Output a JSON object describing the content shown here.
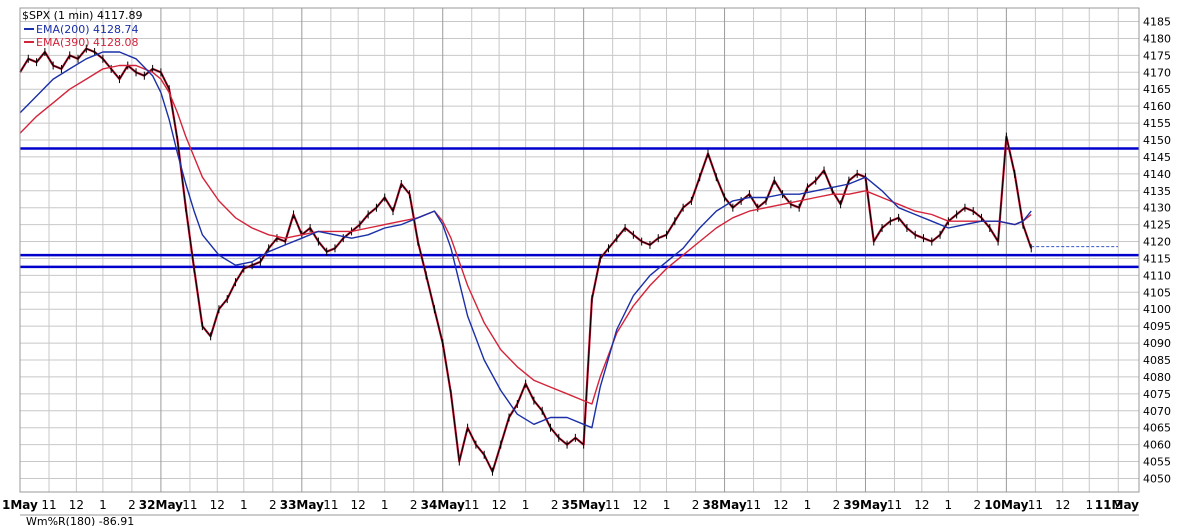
{
  "legend": {
    "title": "$SPX (1 min) 4117.89",
    "ema200": "EMA(200) 4128.74",
    "ema390": "EMA(390) 4128.08"
  },
  "sub_panel_label": "Wm%R(180) -86.91",
  "colors": {
    "price": "#000000",
    "price_overlay": "#cc1133",
    "ema200": "#1a2fa8",
    "ema390": "#d4243a",
    "hline": "#0000cc",
    "grid": "#c8c8c8",
    "last_price_dash": "#3355cc"
  },
  "chart_data": {
    "type": "line",
    "title": "$SPX (1 min) 4117.89",
    "ylim": [
      4046,
      4189
    ],
    "yticks": [
      4050,
      4055,
      4060,
      4065,
      4070,
      4075,
      4080,
      4085,
      4090,
      4095,
      4100,
      4105,
      4110,
      4115,
      4120,
      4125,
      4130,
      4135,
      4140,
      4145,
      4150,
      4155,
      4160,
      4165,
      4170,
      4175,
      4180,
      4185
    ],
    "x_range": [
      0,
      13.5
    ],
    "x_tick_labels": [
      {
        "x": 0.0,
        "text": "1May",
        "bold": true
      },
      {
        "x": 0.35,
        "text": "11",
        "bold": false
      },
      {
        "x": 0.68,
        "text": "12",
        "bold": false
      },
      {
        "x": 1.0,
        "text": "1",
        "bold": false
      },
      {
        "x": 1.35,
        "text": "2",
        "bold": false
      },
      {
        "x": 1.7,
        "text": "32May",
        "bold": true
      },
      {
        "x": 2.05,
        "text": "11",
        "bold": false
      },
      {
        "x": 2.38,
        "text": "12",
        "bold": false
      },
      {
        "x": 2.7,
        "text": "1",
        "bold": false
      },
      {
        "x": 3.05,
        "text": "2",
        "bold": false
      },
      {
        "x": 3.4,
        "text": "33May",
        "bold": true
      },
      {
        "x": 3.75,
        "text": "11",
        "bold": false
      },
      {
        "x": 4.08,
        "text": "12",
        "bold": false
      },
      {
        "x": 4.4,
        "text": "1",
        "bold": false
      },
      {
        "x": 4.75,
        "text": "2",
        "bold": false
      },
      {
        "x": 5.1,
        "text": "34May",
        "bold": true
      },
      {
        "x": 5.45,
        "text": "11",
        "bold": false
      },
      {
        "x": 5.78,
        "text": "12",
        "bold": false
      },
      {
        "x": 6.1,
        "text": "1",
        "bold": false
      },
      {
        "x": 6.45,
        "text": "2",
        "bold": false
      },
      {
        "x": 6.8,
        "text": "35May",
        "bold": true
      },
      {
        "x": 7.15,
        "text": "11",
        "bold": false
      },
      {
        "x": 7.48,
        "text": "12",
        "bold": false
      },
      {
        "x": 7.8,
        "text": "1",
        "bold": false
      },
      {
        "x": 8.15,
        "text": "2",
        "bold": false
      },
      {
        "x": 8.5,
        "text": "38May",
        "bold": true
      },
      {
        "x": 8.85,
        "text": "11",
        "bold": false
      },
      {
        "x": 9.18,
        "text": "12",
        "bold": false
      },
      {
        "x": 9.5,
        "text": "1",
        "bold": false
      },
      {
        "x": 9.85,
        "text": "2",
        "bold": false
      },
      {
        "x": 10.2,
        "text": "39May",
        "bold": true
      },
      {
        "x": 10.55,
        "text": "11",
        "bold": false
      },
      {
        "x": 10.88,
        "text": "12",
        "bold": false
      },
      {
        "x": 11.2,
        "text": "1",
        "bold": false
      },
      {
        "x": 11.55,
        "text": "2",
        "bold": false
      },
      {
        "x": 11.9,
        "text": "10May",
        "bold": true
      },
      {
        "x": 12.25,
        "text": "11",
        "bold": false
      },
      {
        "x": 12.58,
        "text": "12",
        "bold": false
      },
      {
        "x": 12.9,
        "text": "1",
        "bold": false
      },
      {
        "x": 13.25,
        "text": "2",
        "bold": false
      },
      {
        "x": 13.5,
        "text": "11May",
        "bold": true
      }
    ],
    "series": [
      {
        "name": "$SPX (1 min)",
        "x": [
          0.0,
          0.1,
          0.2,
          0.3,
          0.4,
          0.5,
          0.6,
          0.7,
          0.8,
          0.9,
          1.0,
          1.1,
          1.2,
          1.3,
          1.4,
          1.5,
          1.6,
          1.7,
          1.8,
          1.9,
          2.0,
          2.1,
          2.2,
          2.3,
          2.4,
          2.5,
          2.6,
          2.7,
          2.8,
          2.9,
          3.0,
          3.1,
          3.2,
          3.3,
          3.4,
          3.5,
          3.6,
          3.7,
          3.8,
          3.9,
          4.0,
          4.1,
          4.2,
          4.3,
          4.4,
          4.5,
          4.6,
          4.7,
          4.8,
          4.9,
          5.0,
          5.1,
          5.2,
          5.3,
          5.4,
          5.5,
          5.6,
          5.7,
          5.8,
          5.9,
          6.0,
          6.1,
          6.2,
          6.3,
          6.4,
          6.5,
          6.6,
          6.7,
          6.8,
          6.9,
          7.0,
          7.1,
          7.2,
          7.3,
          7.4,
          7.5,
          7.6,
          7.7,
          7.8,
          7.9,
          8.0,
          8.1,
          8.2,
          8.3,
          8.4,
          8.5,
          8.6,
          8.7,
          8.8,
          8.9,
          9.0,
          9.1,
          9.2,
          9.3,
          9.4,
          9.5,
          9.6,
          9.7,
          9.8,
          9.9,
          10.0,
          10.1,
          10.2,
          10.3,
          10.4,
          10.5,
          10.6,
          10.7,
          10.8,
          10.9,
          11.0,
          11.1,
          11.2,
          11.3,
          11.4,
          11.5,
          11.6,
          11.7,
          11.8,
          11.9,
          12.0,
          12.1,
          12.2
        ],
        "y": [
          4170,
          4174,
          4173,
          4176,
          4172,
          4171,
          4175,
          4174,
          4177,
          4176,
          4174,
          4171,
          4168,
          4172,
          4170,
          4169,
          4171,
          4170,
          4165,
          4150,
          4130,
          4112,
          4095,
          4092,
          4100,
          4103,
          4108,
          4112,
          4113,
          4114,
          4118,
          4121,
          4120,
          4128,
          4122,
          4124,
          4120,
          4117,
          4118,
          4121,
          4123,
          4125,
          4128,
          4130,
          4133,
          4129,
          4137,
          4134,
          4120,
          4110,
          4100,
          4090,
          4075,
          4055,
          4065,
          4060,
          4057,
          4052,
          4060,
          4068,
          4072,
          4078,
          4073,
          4070,
          4065,
          4062,
          4060,
          4062,
          4060,
          4103,
          4115,
          4118,
          4121,
          4124,
          4122,
          4120,
          4119,
          4121,
          4122,
          4126,
          4130,
          4132,
          4139,
          4146,
          4139,
          4133,
          4130,
          4132,
          4134,
          4130,
          4132,
          4138,
          4134,
          4131,
          4130,
          4136,
          4138,
          4141,
          4135,
          4131,
          4138,
          4140,
          4139,
          4120,
          4124,
          4126,
          4127,
          4124,
          4122,
          4121,
          4120,
          4122,
          4126,
          4128,
          4130,
          4129,
          4127,
          4124,
          4120,
          4151,
          4140,
          4125,
          4118
        ]
      },
      {
        "name": "EMA(200) 4128.74",
        "x": [
          0.0,
          0.2,
          0.4,
          0.6,
          0.8,
          1.0,
          1.2,
          1.4,
          1.6,
          1.7,
          1.8,
          1.9,
          2.0,
          2.1,
          2.2,
          2.4,
          2.6,
          2.8,
          3.0,
          3.2,
          3.4,
          3.6,
          3.8,
          4.0,
          4.2,
          4.4,
          4.6,
          4.8,
          5.0,
          5.1,
          5.2,
          5.3,
          5.4,
          5.6,
          5.8,
          6.0,
          6.2,
          6.4,
          6.6,
          6.8,
          6.9,
          7.0,
          7.2,
          7.4,
          7.6,
          7.8,
          8.0,
          8.2,
          8.4,
          8.6,
          8.8,
          9.0,
          9.2,
          9.4,
          9.6,
          9.8,
          10.0,
          10.2,
          10.4,
          10.6,
          10.8,
          11.0,
          11.2,
          11.4,
          11.6,
          11.8,
          12.0,
          12.1,
          12.2
        ],
        "y": [
          4158,
          4163,
          4168,
          4171,
          4174,
          4176,
          4176,
          4174,
          4169,
          4164,
          4156,
          4146,
          4137,
          4129,
          4122,
          4116,
          4113,
          4114,
          4117,
          4119,
          4121,
          4123,
          4122,
          4121,
          4122,
          4124,
          4125,
          4127,
          4129,
          4125,
          4118,
          4108,
          4098,
          4085,
          4076,
          4069,
          4066,
          4068,
          4068,
          4066,
          4065,
          4077,
          4094,
          4104,
          4110,
          4114,
          4118,
          4124,
          4129,
          4132,
          4133,
          4133,
          4134,
          4134,
          4135,
          4136,
          4137,
          4139,
          4135,
          4130,
          4128,
          4126,
          4124,
          4125,
          4126,
          4126,
          4125,
          4126,
          4129
        ]
      },
      {
        "name": "EMA(390) 4128.08",
        "x": [
          0.0,
          0.2,
          0.4,
          0.6,
          0.8,
          1.0,
          1.2,
          1.4,
          1.6,
          1.7,
          1.8,
          1.9,
          2.0,
          2.1,
          2.2,
          2.4,
          2.6,
          2.8,
          3.0,
          3.2,
          3.4,
          3.6,
          3.8,
          4.0,
          4.2,
          4.4,
          4.6,
          4.8,
          5.0,
          5.1,
          5.2,
          5.3,
          5.4,
          5.6,
          5.8,
          6.0,
          6.2,
          6.4,
          6.6,
          6.8,
          6.9,
          7.0,
          7.2,
          7.4,
          7.6,
          7.8,
          8.0,
          8.2,
          8.4,
          8.6,
          8.8,
          9.0,
          9.2,
          9.4,
          9.6,
          9.8,
          10.0,
          10.2,
          10.4,
          10.6,
          10.8,
          11.0,
          11.2,
          11.4,
          11.6,
          11.8,
          12.0,
          12.1,
          12.2
        ],
        "y": [
          4152,
          4157,
          4161,
          4165,
          4168,
          4171,
          4172,
          4172,
          4170,
          4168,
          4164,
          4158,
          4151,
          4145,
          4139,
          4132,
          4127,
          4124,
          4122,
          4121,
          4122,
          4123,
          4123,
          4123,
          4124,
          4125,
          4126,
          4127,
          4129,
          4126,
          4121,
          4114,
          4107,
          4096,
          4088,
          4083,
          4079,
          4077,
          4075,
          4073,
          4072,
          4080,
          4093,
          4101,
          4107,
          4112,
          4116,
          4120,
          4124,
          4127,
          4129,
          4130,
          4131,
          4132,
          4133,
          4134,
          4134,
          4135,
          4133,
          4131,
          4129,
          4128,
          4126,
          4126,
          4126,
          4126,
          4125,
          4126,
          4128
        ]
      }
    ],
    "horizontal_lines": [
      4147.5,
      4116.0,
      4112.5
    ],
    "last_price": 4118.5
  }
}
